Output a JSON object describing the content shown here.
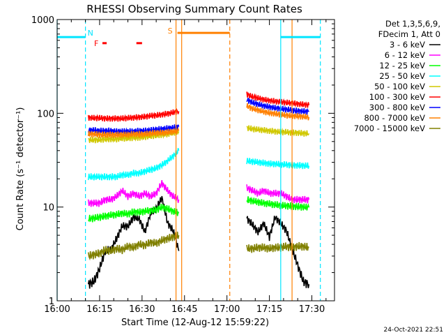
{
  "chart_data": {
    "type": "line",
    "title": "RHESSI Observing Summary Count Rates",
    "xlabel": "Start Time (12-Aug-12 15:59:22)",
    "ylabel": "Count Rate (s⁻¹ detector⁻¹)",
    "ylog": true,
    "ylim": [
      1,
      1000
    ],
    "xlim_min": [
      0,
      98
    ],
    "x_ticks": [
      {
        "m": 0,
        "label": "16:00"
      },
      {
        "m": 15,
        "label": "16:15"
      },
      {
        "m": 30,
        "label": "16:30"
      },
      {
        "m": 45,
        "label": "16:45"
      },
      {
        "m": 60,
        "label": "17:00"
      },
      {
        "m": 75,
        "label": "17:15"
      },
      {
        "m": 90,
        "label": "17:30"
      }
    ],
    "y_ticks": [
      {
        "v": 1,
        "label": "1"
      },
      {
        "v": 10,
        "label": "10"
      },
      {
        "v": 100,
        "label": "100"
      },
      {
        "v": 1000,
        "label": "1000"
      }
    ],
    "legend": {
      "header": [
        "Det 1,3,5,6,9,",
        "FDecim 1, Att 0"
      ],
      "position": "right"
    },
    "series": [
      {
        "name": "3 - 6 keV",
        "color": "#000000",
        "segments": [
          {
            "x": [
              11,
              13,
              15,
              17,
              19,
              21,
              23,
              25,
              27,
              29,
              31,
              33,
              35,
              37,
              39,
              41,
              43
            ],
            "y": [
              1.5,
              1.6,
              2.2,
              3.4,
              3.5,
              4.6,
              6.3,
              6.2,
              7.8,
              7.5,
              5.4,
              8.6,
              9.6,
              12.6,
              6.8,
              5.6,
              3.4
            ]
          },
          {
            "x": [
              67,
              69,
              71,
              73,
              75,
              77,
              79,
              81,
              83,
              85,
              87,
              89
            ],
            "y": [
              7.6,
              6.5,
              5.4,
              6.7,
              4.8,
              7.8,
              6.7,
              5.6,
              3.6,
              2.4,
              1.6,
              1.5
            ]
          }
        ]
      },
      {
        "name": "6 - 12 keV",
        "color": "#ff00ff",
        "segments": [
          {
            "x": [
              11,
              13,
              15,
              17,
              19,
              21,
              23,
              25,
              27,
              29,
              31,
              33,
              35,
              37,
              39,
              41,
              43
            ],
            "y": [
              11,
              11,
              11,
              12,
              12,
              13,
              15,
              13,
              14,
              13,
              14,
              13,
              14,
              18,
              15,
              13,
              12
            ]
          },
          {
            "x": [
              67,
              69,
              71,
              73,
              75,
              77,
              79,
              81,
              83,
              85,
              87,
              89
            ],
            "y": [
              16,
              15,
              14,
              15,
              14,
              14,
              14,
              13,
              12,
              12,
              12,
              12
            ]
          }
        ]
      },
      {
        "name": "12 - 25 keV",
        "color": "#00ff00",
        "segments": [
          {
            "x": [
              11,
              13,
              15,
              17,
              19,
              21,
              23,
              25,
              27,
              29,
              31,
              33,
              35,
              37,
              39,
              41,
              43
            ],
            "y": [
              7.5,
              7.6,
              7.8,
              8,
              8.2,
              8.3,
              8.6,
              8.4,
              8.9,
              8.8,
              9,
              9.2,
              9.3,
              10,
              9.6,
              9,
              8.6
            ]
          },
          {
            "x": [
              67,
              69,
              71,
              73,
              75,
              77,
              79,
              81,
              83,
              85,
              87,
              89
            ],
            "y": [
              12,
              11.6,
              11.3,
              11,
              10.8,
              10.6,
              10.4,
              10.3,
              10.2,
              10.1,
              10,
              9.9
            ]
          }
        ]
      },
      {
        "name": "25 - 50 keV",
        "color": "#00ffff",
        "segments": [
          {
            "x": [
              11,
              13,
              15,
              17,
              19,
              21,
              23,
              25,
              27,
              29,
              31,
              33,
              35,
              37,
              39,
              41,
              43
            ],
            "y": [
              21,
              21,
              21,
              21,
              21,
              21,
              22,
              22,
              23,
              23,
              24,
              25,
              26,
              28,
              31,
              35,
              40
            ]
          },
          {
            "x": [
              67,
              69,
              71,
              73,
              75,
              77,
              79,
              81,
              83,
              85,
              87,
              89
            ],
            "y": [
              31,
              30.5,
              30,
              29.5,
              29,
              28.8,
              28.5,
              28.3,
              28,
              27.8,
              27.6,
              27.5
            ]
          }
        ]
      },
      {
        "name": "50 - 100 keV",
        "color": "#d0c800",
        "segments": [
          {
            "x": [
              11,
              13,
              15,
              17,
              19,
              21,
              23,
              25,
              27,
              29,
              31,
              33,
              35,
              37,
              39,
              41,
              43
            ],
            "y": [
              52,
              52,
              52,
              53,
              53,
              53,
              54,
              54,
              55,
              55,
              56,
              57,
              58,
              59,
              60,
              62,
              64
            ]
          },
          {
            "x": [
              67,
              69,
              71,
              73,
              75,
              77,
              79,
              81,
              83,
              85,
              87,
              89
            ],
            "y": [
              70,
              68,
              67,
              66,
              65,
              64,
              63,
              63,
              62,
              62,
              61,
              61
            ]
          }
        ]
      },
      {
        "name": "100 - 300 keV",
        "color": "#ff0000",
        "segments": [
          {
            "x": [
              11,
              13,
              15,
              17,
              19,
              21,
              23,
              25,
              27,
              29,
              31,
              33,
              35,
              37,
              39,
              41,
              43
            ],
            "y": [
              90,
              89,
              89,
              88,
              88,
              88,
              88,
              89,
              90,
              91,
              92,
              94,
              95,
              97,
              99,
              102,
              105
            ]
          },
          {
            "x": [
              67,
              69,
              71,
              73,
              75,
              77,
              79,
              81,
              83,
              85,
              87,
              89
            ],
            "y": [
              160,
              150,
              145,
              140,
              137,
              134,
              132,
              130,
              128,
              126,
              124,
              122
            ]
          }
        ]
      },
      {
        "name": "300 - 800 keV",
        "color": "#0000ff",
        "segments": [
          {
            "x": [
              11,
              13,
              15,
              17,
              19,
              21,
              23,
              25,
              27,
              29,
              31,
              33,
              35,
              37,
              39,
              41,
              43
            ],
            "y": [
              66,
              66,
              65,
              65,
              65,
              64,
              64,
              64,
              64,
              65,
              65,
              66,
              67,
              68,
              69,
              70,
              72
            ]
          },
          {
            "x": [
              67,
              69,
              71,
              73,
              75,
              77,
              79,
              81,
              83,
              85,
              87,
              89
            ],
            "y": [
              140,
              130,
              125,
              120,
              117,
              114,
              112,
              110,
              108,
              106,
              105,
              104
            ]
          }
        ]
      },
      {
        "name": "800 - 7000 keV",
        "color": "#ff8000",
        "segments": [
          {
            "x": [
              11,
              13,
              15,
              17,
              19,
              21,
              23,
              25,
              27,
              29,
              31,
              33,
              35,
              37,
              39,
              41,
              43
            ],
            "y": [
              60,
              60,
              59,
              59,
              59,
              59,
              59,
              59,
              60,
              60,
              60,
              61,
              62,
              62,
              63,
              64,
              65
            ]
          },
          {
            "x": [
              67,
              69,
              71,
              73,
              75,
              77,
              79,
              81,
              83,
              85,
              87,
              89
            ],
            "y": [
              120,
              112,
              108,
              104,
              101,
              99,
              97,
              95,
              94,
              93,
              92,
              91
            ]
          }
        ]
      },
      {
        "name": "7000 - 15000 keV",
        "color": "#808000",
        "segments": [
          {
            "x": [
              11,
              13,
              15,
              17,
              19,
              21,
              23,
              25,
              27,
              29,
              31,
              33,
              35,
              37,
              39,
              41,
              43
            ],
            "y": [
              3,
              3.1,
              3.2,
              3.5,
              3.4,
              3.6,
              3.5,
              3.8,
              3.7,
              4,
              3.9,
              4.2,
              4.1,
              4.4,
              4.6,
              4.8,
              5
            ]
          },
          {
            "x": [
              67,
              69,
              71,
              73,
              75,
              77,
              79,
              81,
              83,
              85,
              87,
              89
            ],
            "y": [
              3.6,
              3.6,
              3.7,
              3.7,
              3.6,
              3.7,
              3.7,
              3.8,
              3.7,
              3.8,
              3.8,
              3.7
            ]
          }
        ]
      }
    ],
    "annotations": {
      "night_markers": [
        {
          "x": [
            0,
            10
          ],
          "label": "N",
          "color": "#00e5ff",
          "level": 650
        },
        {
          "x": [
            79,
            93
          ],
          "label": "",
          "color": "#00e5ff",
          "level": 650
        }
      ],
      "flare_markers": {
        "label": "F",
        "color": "#ff0000",
        "segments": [
          [
            16,
            17.5
          ],
          [
            28,
            30
          ]
        ],
        "level": 560
      },
      "saa_marker": {
        "label": "S",
        "color": "#ff8000",
        "x": [
          42,
          61
        ],
        "level": 720
      },
      "vlines": [
        {
          "x": 0,
          "color": "#00e5ff",
          "dash": false
        },
        {
          "x": 10,
          "color": "#00e5ff",
          "dash": true
        },
        {
          "x": 79,
          "color": "#00e5ff",
          "dash": false
        },
        {
          "x": 93,
          "color": "#00e5ff",
          "dash": true
        },
        {
          "x": 42,
          "color": "#ff8000",
          "dash": false
        },
        {
          "x": 44,
          "color": "#ff8000",
          "dash": false
        },
        {
          "x": 61,
          "color": "#ff8000",
          "dash": true
        },
        {
          "x": 83,
          "color": "#ff8000",
          "dash": false
        }
      ]
    },
    "timestamp": "24-Oct-2021 22:51"
  }
}
